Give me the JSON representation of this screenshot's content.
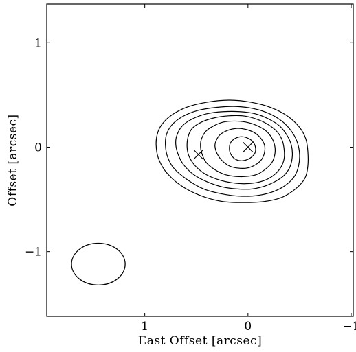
{
  "chart_data": {
    "type": "contour",
    "title": "",
    "xlabel": "East Offset [arcsec]",
    "ylabel": "Offset [arcsec]",
    "xlim": [
      1.95,
      -1.02
    ],
    "ylim": [
      -1.62,
      1.37
    ],
    "x_ticks": [
      {
        "value": 1,
        "label": "1"
      },
      {
        "value": 0,
        "label": "0"
      },
      {
        "value": -1,
        "label": "−1"
      }
    ],
    "y_ticks": [
      {
        "value": 1,
        "label": "1"
      },
      {
        "value": 0,
        "label": "0"
      },
      {
        "value": -1,
        "label": "−1"
      }
    ],
    "grid": false,
    "contours": [
      {
        "level": 1,
        "points": [
          [
            0.88,
            0.12
          ],
          [
            0.84,
            0.21
          ],
          [
            0.75,
            0.3
          ],
          [
            0.6,
            0.38
          ],
          [
            0.4,
            0.43
          ],
          [
            0.18,
            0.45
          ],
          [
            -0.03,
            0.43
          ],
          [
            -0.22,
            0.38
          ],
          [
            -0.38,
            0.3
          ],
          [
            -0.5,
            0.19
          ],
          [
            -0.56,
            0.08
          ],
          [
            -0.58,
            -0.04
          ],
          [
            -0.58,
            -0.18
          ],
          [
            -0.55,
            -0.3
          ],
          [
            -0.46,
            -0.4
          ],
          [
            -0.33,
            -0.48
          ],
          [
            -0.16,
            -0.52
          ],
          [
            0.03,
            -0.53
          ],
          [
            0.25,
            -0.52
          ],
          [
            0.47,
            -0.46
          ],
          [
            0.66,
            -0.36
          ],
          [
            0.8,
            -0.23
          ],
          [
            0.87,
            -0.1
          ],
          [
            0.89,
            0.02
          ]
        ]
      },
      {
        "level": 2,
        "points": [
          [
            0.79,
            0.12
          ],
          [
            0.74,
            0.21
          ],
          [
            0.64,
            0.29
          ],
          [
            0.49,
            0.35
          ],
          [
            0.31,
            0.38
          ],
          [
            0.13,
            0.39
          ],
          [
            -0.05,
            0.37
          ],
          [
            -0.21,
            0.32
          ],
          [
            -0.34,
            0.24
          ],
          [
            -0.43,
            0.14
          ],
          [
            -0.48,
            0.04
          ],
          [
            -0.5,
            -0.07
          ],
          [
            -0.49,
            -0.18
          ],
          [
            -0.45,
            -0.28
          ],
          [
            -0.37,
            -0.36
          ],
          [
            -0.26,
            -0.42
          ],
          [
            -0.11,
            -0.46
          ],
          [
            0.06,
            -0.47
          ],
          [
            0.24,
            -0.45
          ],
          [
            0.43,
            -0.4
          ],
          [
            0.59,
            -0.31
          ],
          [
            0.72,
            -0.2
          ],
          [
            0.78,
            -0.09
          ],
          [
            0.8,
            0.02
          ]
        ]
      },
      {
        "level": 3,
        "points": [
          [
            0.69,
            0.11
          ],
          [
            0.64,
            0.2
          ],
          [
            0.54,
            0.27
          ],
          [
            0.4,
            0.32
          ],
          [
            0.24,
            0.34
          ],
          [
            0.08,
            0.34
          ],
          [
            -0.07,
            0.32
          ],
          [
            -0.2,
            0.27
          ],
          [
            -0.31,
            0.2
          ],
          [
            -0.38,
            0.11
          ],
          [
            -0.42,
            0.02
          ],
          [
            -0.43,
            -0.08
          ],
          [
            -0.41,
            -0.18
          ],
          [
            -0.36,
            -0.26
          ],
          [
            -0.28,
            -0.32
          ],
          [
            -0.17,
            -0.37
          ],
          [
            -0.04,
            -0.4
          ],
          [
            0.1,
            -0.4
          ],
          [
            0.25,
            -0.38
          ],
          [
            0.4,
            -0.33
          ],
          [
            0.53,
            -0.26
          ],
          [
            0.63,
            -0.16
          ],
          [
            0.68,
            -0.06
          ],
          [
            0.7,
            0.03
          ]
        ]
      },
      {
        "level": 4,
        "points": [
          [
            0.58,
            0.1
          ],
          [
            0.54,
            0.18
          ],
          [
            0.45,
            0.24
          ],
          [
            0.33,
            0.28
          ],
          [
            0.19,
            0.3
          ],
          [
            0.05,
            0.3
          ],
          [
            -0.08,
            0.27
          ],
          [
            -0.19,
            0.22
          ],
          [
            -0.28,
            0.15
          ],
          [
            -0.33,
            0.07
          ],
          [
            -0.35,
            -0.02
          ],
          [
            -0.35,
            -0.11
          ],
          [
            -0.32,
            -0.19
          ],
          [
            -0.26,
            -0.26
          ],
          [
            -0.18,
            -0.31
          ],
          [
            -0.08,
            -0.34
          ],
          [
            0.04,
            -0.35
          ],
          [
            0.16,
            -0.34
          ],
          [
            0.29,
            -0.31
          ],
          [
            0.41,
            -0.26
          ],
          [
            0.51,
            -0.18
          ],
          [
            0.57,
            -0.09
          ],
          [
            0.59,
            0.0
          ]
        ]
      },
      {
        "level": 5,
        "points": [
          [
            0.45,
            0.08
          ],
          [
            0.41,
            0.15
          ],
          [
            0.34,
            0.2
          ],
          [
            0.24,
            0.24
          ],
          [
            0.13,
            0.25
          ],
          [
            0.02,
            0.24
          ],
          [
            -0.08,
            0.21
          ],
          [
            -0.17,
            0.16
          ],
          [
            -0.23,
            0.09
          ],
          [
            -0.26,
            0.01
          ],
          [
            -0.26,
            -0.07
          ],
          [
            -0.23,
            -0.15
          ],
          [
            -0.17,
            -0.21
          ],
          [
            -0.09,
            -0.26
          ],
          [
            0.01,
            -0.28
          ],
          [
            0.12,
            -0.28
          ],
          [
            0.23,
            -0.26
          ],
          [
            0.33,
            -0.21
          ],
          [
            0.41,
            -0.14
          ],
          [
            0.45,
            -0.05
          ],
          [
            0.46,
            0.02
          ]
        ]
      },
      {
        "level": 6,
        "points": [
          [
            0.31,
            0.06
          ],
          [
            0.27,
            0.12
          ],
          [
            0.2,
            0.16
          ],
          [
            0.11,
            0.18
          ],
          [
            0.02,
            0.17
          ],
          [
            -0.06,
            0.14
          ],
          [
            -0.12,
            0.09
          ],
          [
            -0.16,
            0.02
          ],
          [
            -0.16,
            -0.05
          ],
          [
            -0.13,
            -0.12
          ],
          [
            -0.07,
            -0.17
          ],
          [
            0.01,
            -0.2
          ],
          [
            0.1,
            -0.2
          ],
          [
            0.18,
            -0.18
          ],
          [
            0.25,
            -0.13
          ],
          [
            0.3,
            -0.06
          ],
          [
            0.32,
            0.01
          ]
        ]
      },
      {
        "level": 7,
        "points": [
          [
            0.17,
            0.04
          ],
          [
            0.13,
            0.08
          ],
          [
            0.07,
            0.1
          ],
          [
            0.01,
            0.09
          ],
          [
            -0.04,
            0.06
          ],
          [
            -0.07,
            0.01
          ],
          [
            -0.07,
            -0.05
          ],
          [
            -0.04,
            -0.09
          ],
          [
            0.01,
            -0.12
          ],
          [
            0.07,
            -0.13
          ],
          [
            0.13,
            -0.11
          ],
          [
            0.17,
            -0.06
          ],
          [
            0.18,
            -0.01
          ]
        ]
      }
    ],
    "markers": [
      {
        "x": 0.0,
        "y": 0.0,
        "symbol": "x"
      },
      {
        "x": 0.48,
        "y": -0.07,
        "symbol": "x"
      }
    ],
    "beam": {
      "x": 1.45,
      "y": -1.12,
      "major": 0.26,
      "minor": 0.2,
      "orientation": "east-west"
    }
  }
}
